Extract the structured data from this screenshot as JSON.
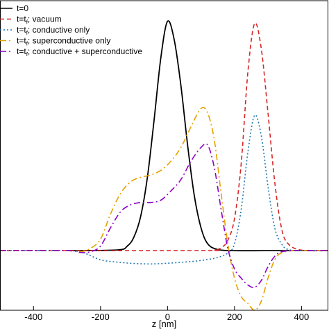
{
  "chart_data": {
    "type": "line",
    "title": "",
    "xlabel": "z [nm]",
    "ylabel": "",
    "xlim": [
      -500,
      480
    ],
    "ylim": [
      -0.26,
      1.09
    ],
    "xticks": [
      -400,
      -200,
      0,
      200,
      400
    ],
    "yticks": [],
    "grid": false,
    "legend": {
      "placement": "top-left"
    },
    "series": [
      {
        "name": "t=0",
        "legend_parts": [
          "t=0"
        ],
        "color": "#000000",
        "style": "solid",
        "x": [
          -300,
          -150,
          -120,
          -100,
          -80,
          -60,
          -40,
          -20,
          0,
          20,
          40,
          60,
          80,
          100,
          120,
          150,
          200,
          300,
          480
        ],
        "y": [
          0,
          0.003,
          0.02,
          0.06,
          0.15,
          0.32,
          0.57,
          0.84,
          1.0,
          0.92,
          0.72,
          0.46,
          0.24,
          0.1,
          0.03,
          0.005,
          0,
          0,
          0
        ]
      },
      {
        "name": "t=tf; vacuum",
        "legend_parts": [
          "t=t",
          "f",
          "; vacuum"
        ],
        "color": "#d62728",
        "style": "dashed",
        "x": [
          -500,
          100,
          140,
          160,
          180,
          200,
          220,
          240,
          260,
          280,
          300,
          320,
          340,
          360,
          400,
          480
        ],
        "y": [
          0,
          0,
          0.003,
          0.012,
          0.045,
          0.14,
          0.38,
          0.78,
          0.99,
          0.88,
          0.6,
          0.3,
          0.1,
          0.03,
          0.002,
          0
        ]
      },
      {
        "name": "t=tf; conductive only",
        "legend_parts": [
          "t=t",
          "f",
          "; conductive only"
        ],
        "color": "#1f77b4",
        "style": "dotted",
        "x": [
          -500,
          -300,
          -250,
          -200,
          -150,
          -100,
          -50,
          0,
          50,
          100,
          150,
          180,
          200,
          220,
          240,
          260,
          280,
          300,
          320,
          340,
          360,
          400,
          480
        ],
        "y": [
          0,
          0,
          -0.01,
          -0.04,
          -0.05,
          -0.056,
          -0.058,
          -0.055,
          -0.05,
          -0.043,
          -0.03,
          -0.01,
          0.03,
          0.18,
          0.43,
          0.59,
          0.5,
          0.28,
          0.1,
          0.03,
          0.005,
          0,
          0
        ]
      },
      {
        "name": "t=tf; superconductive only",
        "legend_parts": [
          "t=t",
          "f",
          "; superconductive only"
        ],
        "color": "#e6a100",
        "style": "dashdot",
        "x": [
          -500,
          -300,
          -260,
          -230,
          -200,
          -170,
          -140,
          -110,
          -80,
          -50,
          -20,
          10,
          40,
          70,
          100,
          120,
          140,
          160,
          180,
          200,
          220,
          240,
          260,
          280,
          300,
          320,
          340,
          380,
          480
        ],
        "y": [
          0,
          0,
          -0.005,
          0.01,
          0.05,
          0.16,
          0.25,
          0.3,
          0.32,
          0.33,
          0.35,
          0.39,
          0.45,
          0.54,
          0.62,
          0.6,
          0.48,
          0.25,
          0.03,
          -0.12,
          -0.2,
          -0.23,
          -0.26,
          -0.22,
          -0.12,
          -0.04,
          -0.01,
          0,
          0
        ]
      },
      {
        "name": "t=tf; conductive + superconductive",
        "legend_parts": [
          "t=t",
          "f",
          "; conductive + superconductive"
        ],
        "color": "#8e00c4",
        "style": "dashdot",
        "x": [
          -500,
          -300,
          -260,
          -230,
          -200,
          -170,
          -140,
          -110,
          -80,
          -50,
          -20,
          10,
          40,
          70,
          100,
          120,
          140,
          160,
          180,
          200,
          220,
          240,
          260,
          280,
          300,
          320,
          340,
          380,
          480
        ],
        "y": [
          0,
          0,
          -0.008,
          -0.005,
          0.02,
          0.1,
          0.17,
          0.2,
          0.21,
          0.21,
          0.22,
          0.26,
          0.31,
          0.39,
          0.45,
          0.46,
          0.36,
          0.18,
          0.01,
          -0.08,
          -0.12,
          -0.15,
          -0.16,
          -0.13,
          -0.07,
          -0.025,
          -0.005,
          0,
          0
        ]
      }
    ]
  }
}
